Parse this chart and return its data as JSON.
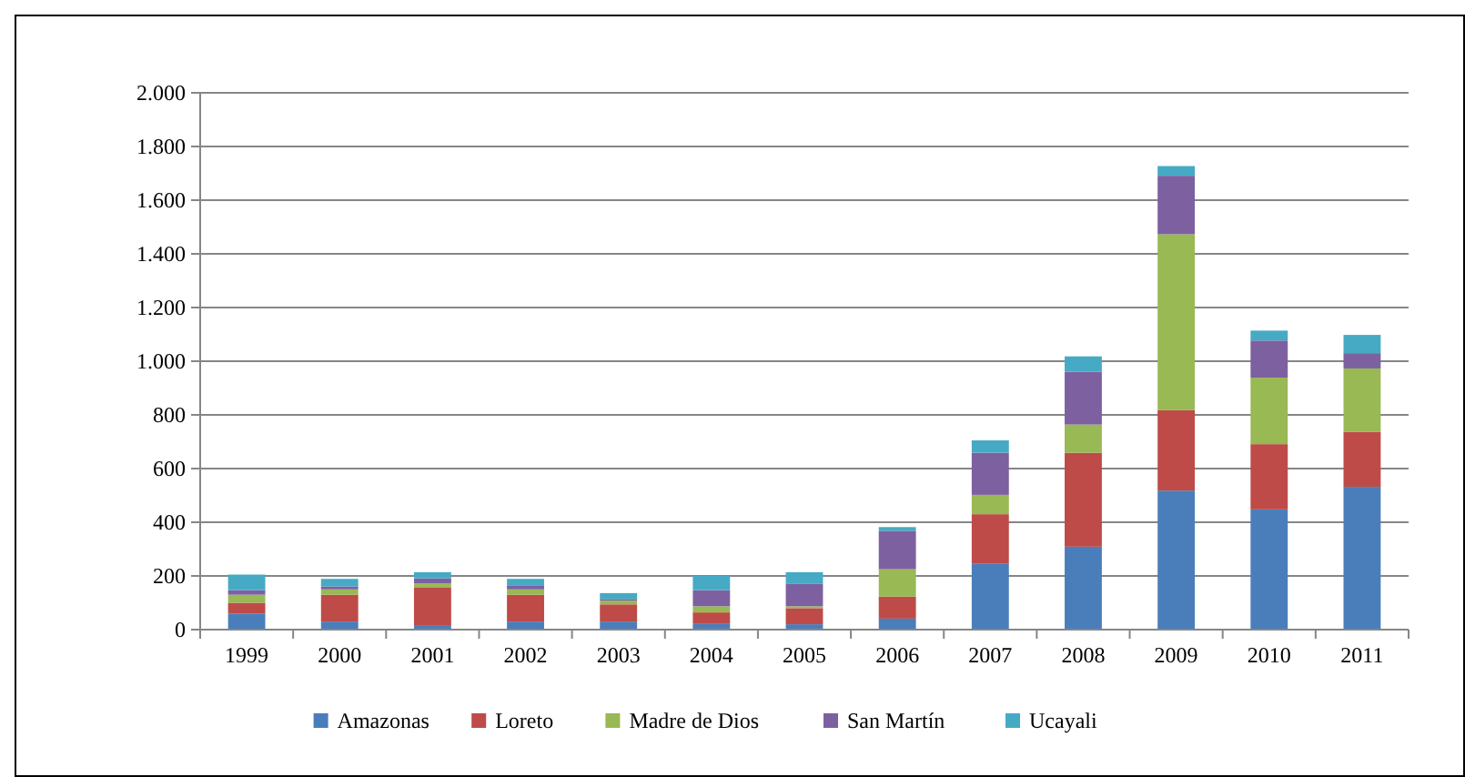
{
  "chart_data": {
    "type": "bar",
    "stacked": true,
    "categories": [
      "1999",
      "2000",
      "2001",
      "2002",
      "2003",
      "2004",
      "2005",
      "2006",
      "2007",
      "2008",
      "2009",
      "2010",
      "2011"
    ],
    "series": [
      {
        "name": "Amazonas",
        "color": "#4a7ebb",
        "values": [
          60,
          30,
          14,
          30,
          30,
          21,
          20,
          41,
          245,
          309,
          518,
          448,
          532
        ]
      },
      {
        "name": "Loreto",
        "color": "#be4b48",
        "values": [
          40,
          100,
          142,
          100,
          64,
          43,
          60,
          82,
          185,
          350,
          300,
          243,
          204
        ]
      },
      {
        "name": "Madre de Dios",
        "color": "#98b954",
        "values": [
          30,
          20,
          16,
          20,
          14,
          23,
          7,
          102,
          72,
          105,
          655,
          248,
          237
        ]
      },
      {
        "name": "San Martín",
        "color": "#7d60a0",
        "values": [
          17,
          11,
          19,
          13,
          6,
          60,
          83,
          143,
          157,
          197,
          218,
          138,
          57
        ]
      },
      {
        "name": "Ucayali",
        "color": "#46aac5",
        "values": [
          58,
          28,
          23,
          26,
          22,
          53,
          44,
          14,
          46,
          57,
          36,
          37,
          68
        ]
      }
    ],
    "ylim": [
      0,
      2000
    ],
    "yticks": [
      0,
      200,
      400,
      600,
      800,
      {
        "value": 1000,
        "label": "1.000"
      },
      {
        "value": 1200,
        "label": "1.200"
      },
      {
        "value": 1400,
        "label": "1.400"
      },
      {
        "value": 1600,
        "label": "1.600"
      },
      {
        "value": 1800,
        "label": "1.800"
      },
      {
        "value": 2000,
        "label": "2.000"
      }
    ],
    "grid": "y",
    "legend": "bottom"
  }
}
